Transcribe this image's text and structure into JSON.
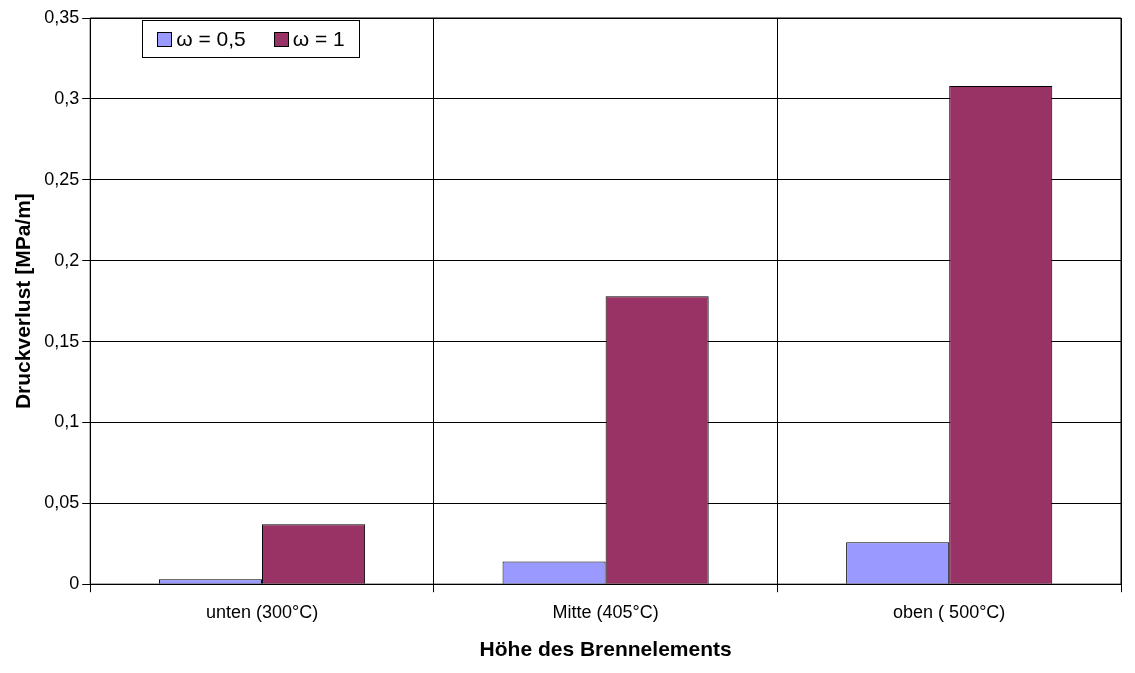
{
  "chart_data": {
    "type": "bar",
    "xlabel": "Höhe des Brennelements",
    "ylabel": "Druckverlust [MPa/m]",
    "categories": [
      "unten (300°C)",
      "Mitte (405°C)",
      "oben ( 500°C)"
    ],
    "series": [
      {
        "name": "ω = 0,5",
        "color": "#9999ff",
        "values": [
          0.003,
          0.014,
          0.026
        ]
      },
      {
        "name": "ω = 1",
        "color": "#993366",
        "values": [
          0.037,
          0.178,
          0.308
        ]
      }
    ],
    "ylim": [
      0,
      0.35
    ],
    "yticks": [
      {
        "value": 0,
        "label": "0"
      },
      {
        "value": 0.05,
        "label": "0,05"
      },
      {
        "value": 0.1,
        "label": "0,1"
      },
      {
        "value": 0.15,
        "label": "0,15"
      },
      {
        "value": 0.2,
        "label": "0,2"
      },
      {
        "value": 0.25,
        "label": "0,25"
      },
      {
        "value": 0.3,
        "label": "0,3"
      },
      {
        "value": 0.35,
        "label": "0,35"
      }
    ],
    "grid": true,
    "legend": "top left"
  }
}
